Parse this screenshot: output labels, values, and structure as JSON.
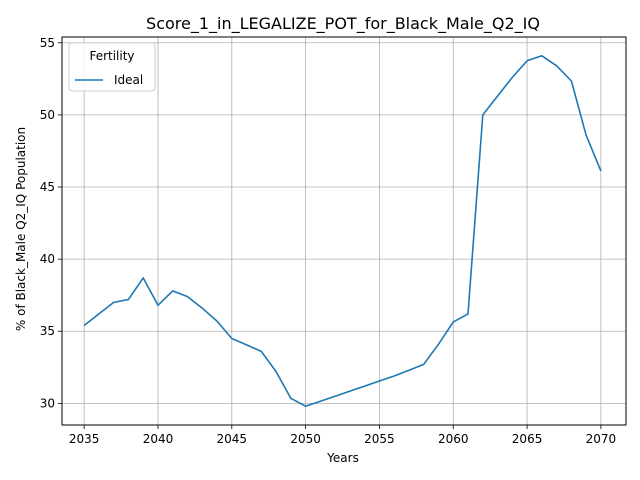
{
  "chart_data": {
    "type": "line",
    "title": "Score_1_in_LEGALIZE_POT_for_Black_Male_Q2_IQ",
    "xlabel": "Years",
    "ylabel": "% of Black_Male Q2_IQ Population",
    "xlim": [
      2033.5,
      2071.7
    ],
    "ylim": [
      28.5,
      55.4
    ],
    "xticks": [
      2035,
      2040,
      2045,
      2050,
      2055,
      2060,
      2065,
      2070
    ],
    "yticks": [
      30,
      35,
      40,
      45,
      50,
      55
    ],
    "grid": true,
    "legend": {
      "title": "Fertility",
      "placement": "top-left"
    },
    "series": [
      {
        "name": "Ideal",
        "color": "#1f77b4",
        "x": [
          2035,
          2036,
          2037,
          2038,
          2039,
          2040,
          2041,
          2042,
          2043,
          2044,
          2045,
          2046,
          2047,
          2048,
          2049,
          2050,
          2051,
          2052,
          2053,
          2054,
          2055,
          2056,
          2057,
          2058,
          2059,
          2060,
          2061,
          2062,
          2063,
          2064,
          2065,
          2066,
          2067,
          2068,
          2069,
          2070
        ],
        "y": [
          35.4,
          36.2,
          37.0,
          37.2,
          38.7,
          36.8,
          37.8,
          37.4,
          36.6,
          35.7,
          34.5,
          34.05,
          33.6,
          32.2,
          30.35,
          29.8,
          30.15,
          30.5,
          30.85,
          31.2,
          31.55,
          31.9,
          32.3,
          32.7,
          34.1,
          35.65,
          36.2,
          50.0,
          51.3,
          52.6,
          53.75,
          54.1,
          53.4,
          52.35,
          48.6,
          46.1
        ]
      }
    ]
  }
}
